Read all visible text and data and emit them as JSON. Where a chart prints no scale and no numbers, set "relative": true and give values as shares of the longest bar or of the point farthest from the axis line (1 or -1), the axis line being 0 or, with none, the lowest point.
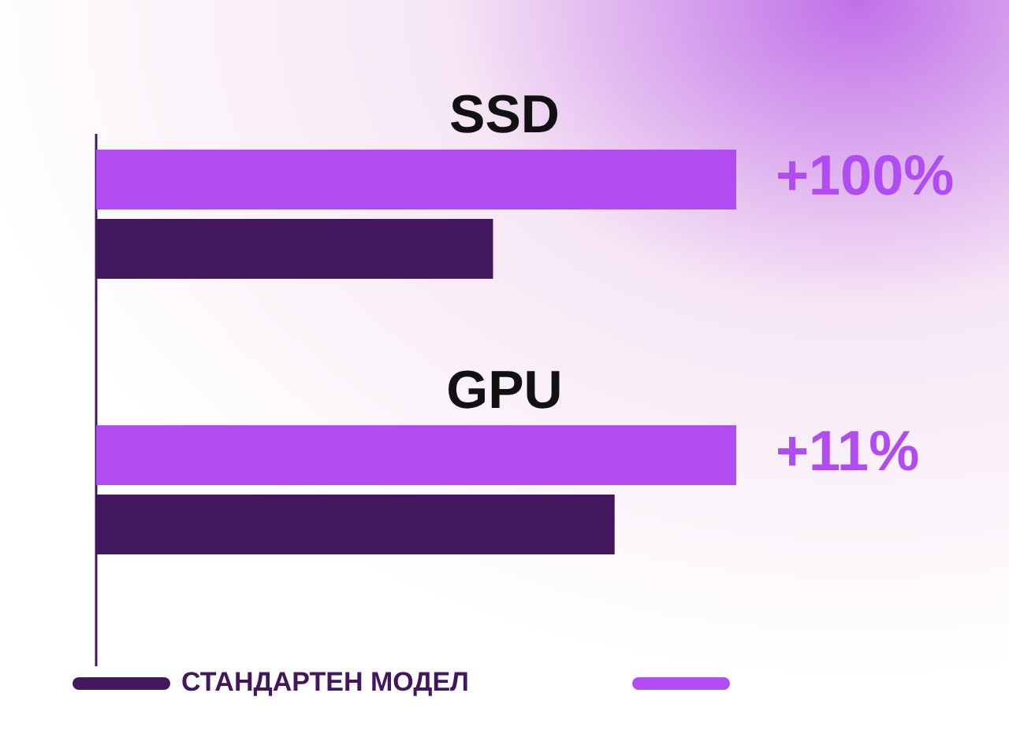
{
  "chart_data": {
    "type": "bar",
    "orientation": "horizontal",
    "relative": true,
    "categories": [
      "SSD",
      "GPU"
    ],
    "series": [
      {
        "color": "#b04cf2",
        "values": [
          1,
          1
        ]
      },
      {
        "name": "СТАНДАРТЕН МОДЕЛ",
        "color": "#43175e",
        "values": [
          0.62,
          0.81
        ]
      }
    ],
    "annotations": [
      "+100%",
      "+11%"
    ],
    "legend": "bottom"
  }
}
